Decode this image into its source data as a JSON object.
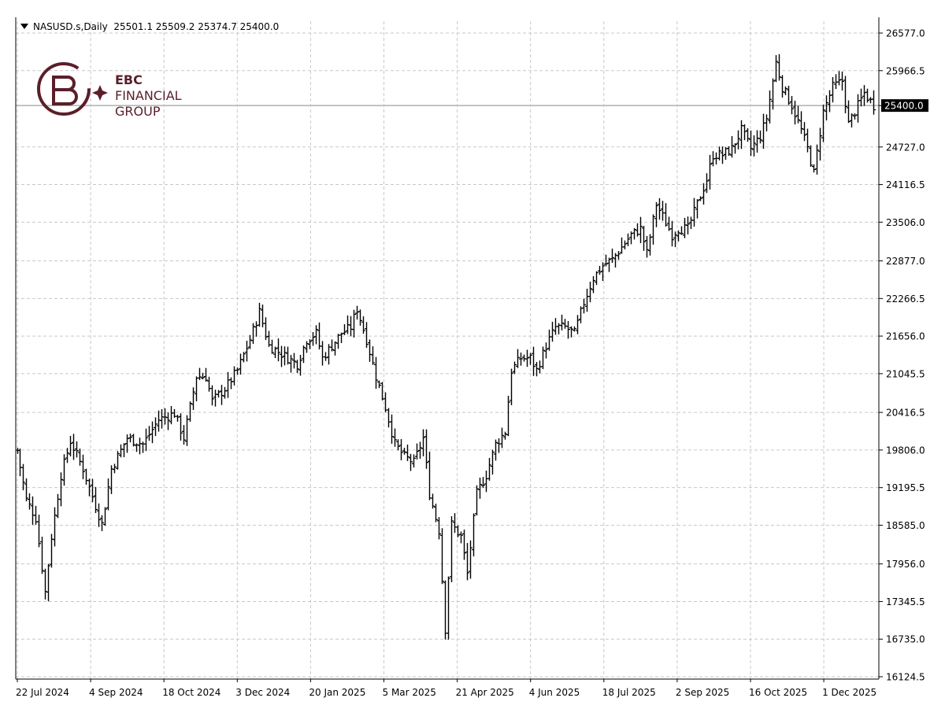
{
  "header": {
    "symbol": "NASUSD.s,Daily",
    "ohlc": "25501.1 25509.2 25374.7 25400.0"
  },
  "logo": {
    "line1": "EBC",
    "line2": "FINANCIAL",
    "line3": "GROUP"
  },
  "chart_data": {
    "type": "bar",
    "style": "ohlc",
    "grid": true,
    "current_price": "25400.0",
    "ylim": [
      16124.5,
      26577.0
    ],
    "y_ticks": [
      "26577.0",
      "25966.5",
      "25400.0",
      "24727.0",
      "24116.5",
      "23506.0",
      "22877.0",
      "22266.5",
      "21656.0",
      "21045.5",
      "20416.5",
      "19806.0",
      "19195.5",
      "18585.0",
      "17956.0",
      "17345.5",
      "16735.0",
      "16124.5"
    ],
    "y_tick_values": [
      26577.0,
      25966.5,
      25400.0,
      24727.0,
      24116.5,
      23506.0,
      22877.0,
      22266.5,
      21656.0,
      21045.5,
      20416.5,
      19806.0,
      19195.5,
      18585.0,
      17956.0,
      17345.5,
      16735.0,
      16124.5
    ],
    "x_ticks": [
      "22 Jul 2024",
      "4 Sep 2024",
      "18 Oct 2024",
      "3 Dec 2024",
      "20 Jan 2025",
      "5 Mar 2025",
      "21 Apr 2025",
      "4 Jun 2025",
      "18 Jul 2025",
      "2 Sep 2025",
      "16 Oct 2025",
      "1 Dec 2025"
    ],
    "anchors": [
      [
        0,
        19800
      ],
      [
        3,
        19000
      ],
      [
        6,
        18700
      ],
      [
        9,
        17500
      ],
      [
        11,
        18400
      ],
      [
        14,
        19400
      ],
      [
        17,
        19950
      ],
      [
        21,
        19500
      ],
      [
        25,
        18900
      ],
      [
        27,
        18600
      ],
      [
        30,
        19500
      ],
      [
        35,
        20000
      ],
      [
        40,
        19900
      ],
      [
        45,
        20300
      ],
      [
        50,
        20400
      ],
      [
        53,
        20000
      ],
      [
        57,
        21000
      ],
      [
        60,
        21000
      ],
      [
        62,
        20600
      ],
      [
        66,
        20800
      ],
      [
        70,
        21100
      ],
      [
        74,
        21600
      ],
      [
        77,
        22050
      ],
      [
        80,
        21500
      ],
      [
        83,
        21400
      ],
      [
        86,
        21300
      ],
      [
        89,
        21200
      ],
      [
        92,
        21600
      ],
      [
        95,
        21700
      ],
      [
        97,
        21300
      ],
      [
        100,
        21500
      ],
      [
        103,
        21700
      ],
      [
        106,
        21800
      ],
      [
        108,
        22100
      ],
      [
        111,
        21600
      ],
      [
        114,
        21000
      ],
      [
        117,
        20500
      ],
      [
        120,
        19900
      ],
      [
        123,
        19700
      ],
      [
        126,
        19600
      ],
      [
        129,
        20000
      ],
      [
        131,
        19100
      ],
      [
        134,
        18500
      ],
      [
        136,
        16900
      ],
      [
        138,
        18600
      ],
      [
        141,
        18400
      ],
      [
        143,
        17800
      ],
      [
        146,
        19100
      ],
      [
        149,
        19400
      ],
      [
        152,
        19900
      ],
      [
        155,
        20100
      ],
      [
        157,
        21100
      ],
      [
        160,
        21300
      ],
      [
        163,
        21300
      ],
      [
        165,
        21100
      ],
      [
        168,
        21500
      ],
      [
        171,
        21800
      ],
      [
        174,
        21800
      ],
      [
        177,
        21700
      ],
      [
        180,
        22200
      ],
      [
        183,
        22600
      ],
      [
        186,
        22800
      ],
      [
        189,
        22900
      ],
      [
        192,
        23100
      ],
      [
        195,
        23300
      ],
      [
        198,
        23400
      ],
      [
        200,
        23000
      ],
      [
        203,
        23800
      ],
      [
        205,
        23600
      ],
      [
        208,
        23300
      ],
      [
        210,
        23400
      ],
      [
        213,
        23400
      ],
      [
        216,
        23800
      ],
      [
        219,
        24200
      ],
      [
        221,
        24600
      ],
      [
        224,
        24600
      ],
      [
        227,
        24700
      ],
      [
        230,
        25000
      ],
      [
        233,
        24700
      ],
      [
        236,
        24900
      ],
      [
        238,
        25200
      ],
      [
        241,
        26100
      ],
      [
        243,
        25700
      ],
      [
        246,
        25400
      ],
      [
        249,
        25000
      ],
      [
        251,
        24700
      ],
      [
        253,
        24300
      ],
      [
        256,
        25300
      ],
      [
        259,
        25700
      ],
      [
        262,
        25800
      ],
      [
        264,
        25100
      ],
      [
        266,
        25300
      ],
      [
        269,
        25600
      ],
      [
        272,
        25400
      ]
    ]
  }
}
